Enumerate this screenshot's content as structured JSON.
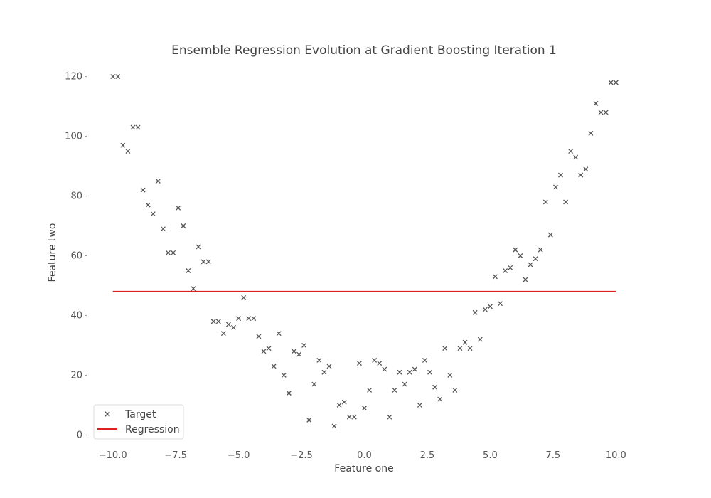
{
  "chart_data": {
    "type": "scatter",
    "title": "Ensemble Regression Evolution at Gradient Boosting Iteration 1",
    "xlabel": "Feature one",
    "ylabel": "Feature two",
    "xlim": [
      -10.5,
      10.5
    ],
    "ylim": [
      -3,
      123
    ],
    "xticks": [
      -10.0,
      -7.5,
      -5.0,
      -2.5,
      0.0,
      2.5,
      5.0,
      7.5,
      10.0
    ],
    "xtick_labels": [
      "−10.0",
      "−7.5",
      "−5.0",
      "−2.5",
      "0.0",
      "2.5",
      "5.0",
      "7.5",
      "10.0"
    ],
    "yticks": [
      0,
      20,
      40,
      60,
      80,
      100,
      120
    ],
    "ytick_labels": [
      "0",
      "20",
      "40",
      "60",
      "80",
      "100",
      "120"
    ],
    "grid": false,
    "legend": {
      "placement": "lower-left",
      "entries": [
        {
          "label": "Target",
          "marker": "x",
          "color": "#555555"
        },
        {
          "label": "Regression",
          "marker": "line",
          "color": "#e02020"
        }
      ]
    },
    "series": [
      {
        "name": "Target",
        "marker": "x",
        "color": "#555555",
        "x": [
          -10.0,
          -9.8,
          -9.6,
          -9.4,
          -9.2,
          -9.0,
          -8.8,
          -8.6,
          -8.4,
          -8.2,
          -8.0,
          -7.8,
          -7.6,
          -7.4,
          -7.2,
          -7.0,
          -6.8,
          -6.6,
          -6.4,
          -6.2,
          -6.0,
          -5.8,
          -5.6,
          -5.4,
          -5.2,
          -5.0,
          -4.8,
          -4.6,
          -4.4,
          -4.2,
          -4.0,
          -3.8,
          -3.6,
          -3.4,
          -3.2,
          -3.0,
          -2.8,
          -2.6,
          -2.4,
          -2.2,
          -2.0,
          -1.8,
          -1.6,
          -1.4,
          -1.2,
          -1.0,
          -0.8,
          -0.6,
          -0.4,
          -0.2,
          0.0,
          0.2,
          0.4,
          0.6,
          0.8,
          1.0,
          1.2,
          1.4,
          1.6,
          1.8,
          2.0,
          2.2,
          2.4,
          2.6,
          2.8,
          3.0,
          3.2,
          3.4,
          3.6,
          3.8,
          4.0,
          4.2,
          4.4,
          4.6,
          4.8,
          5.0,
          5.2,
          5.4,
          5.6,
          5.8,
          6.0,
          6.2,
          6.4,
          6.6,
          6.8,
          7.0,
          7.2,
          7.4,
          7.6,
          7.8,
          8.0,
          8.2,
          8.4,
          8.6,
          8.8,
          9.0,
          9.2,
          9.4,
          9.6,
          9.8,
          10.0
        ],
        "y": [
          120,
          120,
          97,
          95,
          103,
          103,
          82,
          77,
          74,
          85,
          69,
          61,
          61,
          76,
          70,
          55,
          49,
          63,
          58,
          58,
          38,
          38,
          34,
          37,
          36,
          39,
          46,
          39,
          39,
          33,
          28,
          29,
          23,
          34,
          20,
          14,
          28,
          27,
          30,
          5,
          17,
          25,
          21,
          23,
          3,
          10,
          11,
          6,
          6,
          24,
          9,
          15,
          25,
          24,
          22,
          6,
          15,
          21,
          17,
          21,
          22,
          10,
          25,
          21,
          16,
          12,
          29,
          20,
          15,
          29,
          31,
          29,
          41,
          32,
          42,
          43,
          53,
          44,
          55,
          56,
          62,
          60,
          52,
          57,
          59,
          62,
          78,
          67,
          83,
          87,
          78,
          95,
          93,
          87,
          89,
          101,
          111,
          108,
          108,
          118,
          118
        ]
      },
      {
        "name": "Regression",
        "marker": "line",
        "color": "#e02020",
        "x": [
          -10.0,
          10.0
        ],
        "y": [
          48,
          48
        ]
      }
    ]
  }
}
